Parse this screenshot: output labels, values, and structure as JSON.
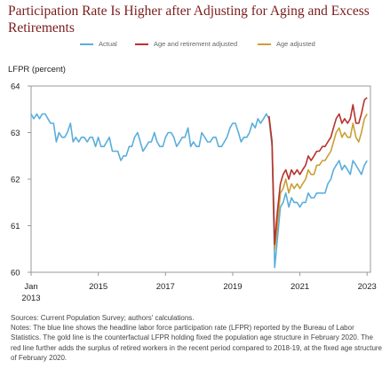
{
  "title": "Participation Rate Is Higher after Adjusting for Aging and Excess Retirements",
  "notes": {
    "sources": "Sources: Current Population Survey; authors' calculations.",
    "text": "Notes: The blue line shows the headline labor force participation rate (LFPR) reported by the Bureau of Labor Statistics. The gold line is the counterfactual LFPR holding fixed the population age structure in February 2020. The red line further adds the surplus of retired workers in the recent period compared to 2018-19, at the fixed age structure of February 2020."
  },
  "colors": {
    "actual": "#5aaedc",
    "age_retirement": "#b8322e",
    "age": "#c9a034",
    "title": "#7a1b1b",
    "axis": "#999999"
  },
  "chart_data": {
    "type": "line",
    "title": "Participation Rate Is Higher after Adjusting for Aging and Excess Retirements",
    "ylabel": "LFPR (percent)",
    "xlabel": "",
    "ylim": [
      60,
      64
    ],
    "xlim": [
      2013.0,
      2023.1
    ],
    "grid": false,
    "legend_position": "top",
    "y_ticks": [
      "60",
      "61",
      "62",
      "63",
      "64"
    ],
    "x_ticks": [
      {
        "value": 2013.0,
        "label": "Jan",
        "sublabel": "2013"
      },
      {
        "value": 2015.0,
        "label": "2015"
      },
      {
        "value": 2017.0,
        "label": "2017"
      },
      {
        "value": 2019.0,
        "label": "2019"
      },
      {
        "value": 2021.0,
        "label": "2021"
      },
      {
        "value": 2023.0,
        "label": "2023"
      }
    ],
    "series": [
      {
        "name": "Actual",
        "key": "actual",
        "points": [
          [
            2013.0,
            63.4
          ],
          [
            2013.08,
            63.3
          ],
          [
            2013.17,
            63.4
          ],
          [
            2013.25,
            63.3
          ],
          [
            2013.33,
            63.4
          ],
          [
            2013.42,
            63.4
          ],
          [
            2013.5,
            63.3
          ],
          [
            2013.58,
            63.2
          ],
          [
            2013.67,
            63.2
          ],
          [
            2013.75,
            62.8
          ],
          [
            2013.83,
            63.0
          ],
          [
            2013.92,
            62.9
          ],
          [
            2014.0,
            62.9
          ],
          [
            2014.08,
            63.0
          ],
          [
            2014.17,
            63.2
          ],
          [
            2014.25,
            62.8
          ],
          [
            2014.33,
            62.9
          ],
          [
            2014.42,
            62.8
          ],
          [
            2014.5,
            62.9
          ],
          [
            2014.58,
            62.9
          ],
          [
            2014.67,
            62.8
          ],
          [
            2014.75,
            62.9
          ],
          [
            2014.83,
            62.9
          ],
          [
            2014.92,
            62.7
          ],
          [
            2015.0,
            62.9
          ],
          [
            2015.08,
            62.7
          ],
          [
            2015.17,
            62.7
          ],
          [
            2015.25,
            62.8
          ],
          [
            2015.33,
            62.9
          ],
          [
            2015.42,
            62.6
          ],
          [
            2015.5,
            62.6
          ],
          [
            2015.58,
            62.6
          ],
          [
            2015.67,
            62.4
          ],
          [
            2015.75,
            62.5
          ],
          [
            2015.83,
            62.5
          ],
          [
            2015.92,
            62.7
          ],
          [
            2016.0,
            62.7
          ],
          [
            2016.08,
            62.9
          ],
          [
            2016.17,
            63.0
          ],
          [
            2016.25,
            62.8
          ],
          [
            2016.33,
            62.6
          ],
          [
            2016.42,
            62.7
          ],
          [
            2016.5,
            62.8
          ],
          [
            2016.58,
            62.8
          ],
          [
            2016.67,
            63.0
          ],
          [
            2016.75,
            62.8
          ],
          [
            2016.83,
            62.7
          ],
          [
            2016.92,
            62.7
          ],
          [
            2017.0,
            62.9
          ],
          [
            2017.08,
            63.0
          ],
          [
            2017.17,
            63.0
          ],
          [
            2017.25,
            62.9
          ],
          [
            2017.33,
            62.7
          ],
          [
            2017.42,
            62.8
          ],
          [
            2017.5,
            62.9
          ],
          [
            2017.58,
            62.9
          ],
          [
            2017.67,
            63.1
          ],
          [
            2017.75,
            62.7
          ],
          [
            2017.83,
            62.8
          ],
          [
            2017.92,
            62.7
          ],
          [
            2018.0,
            62.7
          ],
          [
            2018.08,
            63.0
          ],
          [
            2018.17,
            62.9
          ],
          [
            2018.25,
            62.8
          ],
          [
            2018.33,
            62.8
          ],
          [
            2018.42,
            62.9
          ],
          [
            2018.5,
            62.9
          ],
          [
            2018.58,
            62.7
          ],
          [
            2018.67,
            62.7
          ],
          [
            2018.75,
            62.8
          ],
          [
            2018.83,
            62.9
          ],
          [
            2018.92,
            63.1
          ],
          [
            2019.0,
            63.2
          ],
          [
            2019.08,
            63.2
          ],
          [
            2019.17,
            63.0
          ],
          [
            2019.25,
            62.8
          ],
          [
            2019.33,
            62.9
          ],
          [
            2019.42,
            62.9
          ],
          [
            2019.5,
            63.0
          ],
          [
            2019.58,
            63.2
          ],
          [
            2019.67,
            63.1
          ],
          [
            2019.75,
            63.3
          ],
          [
            2019.83,
            63.2
          ],
          [
            2019.92,
            63.3
          ],
          [
            2020.0,
            63.4
          ],
          [
            2020.08,
            63.3
          ],
          [
            2020.17,
            62.7
          ],
          [
            2020.25,
            60.1
          ],
          [
            2020.33,
            60.7
          ],
          [
            2020.42,
            61.4
          ],
          [
            2020.5,
            61.5
          ],
          [
            2020.58,
            61.7
          ],
          [
            2020.67,
            61.4
          ],
          [
            2020.75,
            61.6
          ],
          [
            2020.83,
            61.5
          ],
          [
            2020.92,
            61.5
          ],
          [
            2021.0,
            61.4
          ],
          [
            2021.08,
            61.5
          ],
          [
            2021.17,
            61.5
          ],
          [
            2021.25,
            61.7
          ],
          [
            2021.33,
            61.6
          ],
          [
            2021.42,
            61.6
          ],
          [
            2021.5,
            61.7
          ],
          [
            2021.58,
            61.7
          ],
          [
            2021.67,
            61.7
          ],
          [
            2021.75,
            61.7
          ],
          [
            2021.83,
            61.9
          ],
          [
            2021.92,
            62.0
          ],
          [
            2022.0,
            62.2
          ],
          [
            2022.08,
            62.3
          ],
          [
            2022.17,
            62.4
          ],
          [
            2022.25,
            62.2
          ],
          [
            2022.33,
            62.3
          ],
          [
            2022.42,
            62.2
          ],
          [
            2022.5,
            62.1
          ],
          [
            2022.58,
            62.4
          ],
          [
            2022.67,
            62.3
          ],
          [
            2022.75,
            62.2
          ],
          [
            2022.83,
            62.1
          ],
          [
            2022.92,
            62.3
          ],
          [
            2023.0,
            62.4
          ]
        ]
      },
      {
        "name": "Age and retirement adjusted",
        "key": "age_retirement",
        "points": [
          [
            2020.08,
            63.35
          ],
          [
            2020.17,
            62.8
          ],
          [
            2020.25,
            60.6
          ],
          [
            2020.33,
            61.3
          ],
          [
            2020.42,
            61.9
          ],
          [
            2020.5,
            62.1
          ],
          [
            2020.58,
            62.2
          ],
          [
            2020.67,
            62.0
          ],
          [
            2020.75,
            62.2
          ],
          [
            2020.83,
            62.1
          ],
          [
            2020.92,
            62.2
          ],
          [
            2021.0,
            62.1
          ],
          [
            2021.08,
            62.2
          ],
          [
            2021.17,
            62.3
          ],
          [
            2021.25,
            62.5
          ],
          [
            2021.33,
            62.4
          ],
          [
            2021.42,
            62.5
          ],
          [
            2021.5,
            62.6
          ],
          [
            2021.58,
            62.6
          ],
          [
            2021.67,
            62.7
          ],
          [
            2021.75,
            62.7
          ],
          [
            2021.83,
            62.8
          ],
          [
            2021.92,
            62.9
          ],
          [
            2022.0,
            63.1
          ],
          [
            2022.08,
            63.3
          ],
          [
            2022.17,
            63.4
          ],
          [
            2022.25,
            63.2
          ],
          [
            2022.33,
            63.3
          ],
          [
            2022.42,
            63.2
          ],
          [
            2022.5,
            63.3
          ],
          [
            2022.58,
            63.6
          ],
          [
            2022.67,
            63.2
          ],
          [
            2022.75,
            63.2
          ],
          [
            2022.83,
            63.4
          ],
          [
            2022.92,
            63.7
          ],
          [
            2023.0,
            63.75
          ]
        ]
      },
      {
        "name": "Age adjusted",
        "key": "age",
        "points": [
          [
            2020.08,
            63.35
          ],
          [
            2020.17,
            62.8
          ],
          [
            2020.25,
            60.5
          ],
          [
            2020.33,
            61.0
          ],
          [
            2020.42,
            61.7
          ],
          [
            2020.5,
            61.8
          ],
          [
            2020.58,
            62.0
          ],
          [
            2020.67,
            61.7
          ],
          [
            2020.75,
            61.9
          ],
          [
            2020.83,
            61.8
          ],
          [
            2020.92,
            61.9
          ],
          [
            2021.0,
            61.8
          ],
          [
            2021.08,
            61.9
          ],
          [
            2021.17,
            62.0
          ],
          [
            2021.25,
            62.2
          ],
          [
            2021.33,
            62.1
          ],
          [
            2021.42,
            62.1
          ],
          [
            2021.5,
            62.3
          ],
          [
            2021.58,
            62.3
          ],
          [
            2021.67,
            62.4
          ],
          [
            2021.75,
            62.4
          ],
          [
            2021.83,
            62.5
          ],
          [
            2021.92,
            62.6
          ],
          [
            2022.0,
            62.8
          ],
          [
            2022.08,
            63.0
          ],
          [
            2022.17,
            63.1
          ],
          [
            2022.25,
            62.9
          ],
          [
            2022.33,
            63.0
          ],
          [
            2022.42,
            62.9
          ],
          [
            2022.5,
            62.9
          ],
          [
            2022.58,
            63.2
          ],
          [
            2022.67,
            62.9
          ],
          [
            2022.75,
            62.8
          ],
          [
            2022.83,
            63.0
          ],
          [
            2022.92,
            63.3
          ],
          [
            2023.0,
            63.4
          ]
        ]
      }
    ]
  }
}
